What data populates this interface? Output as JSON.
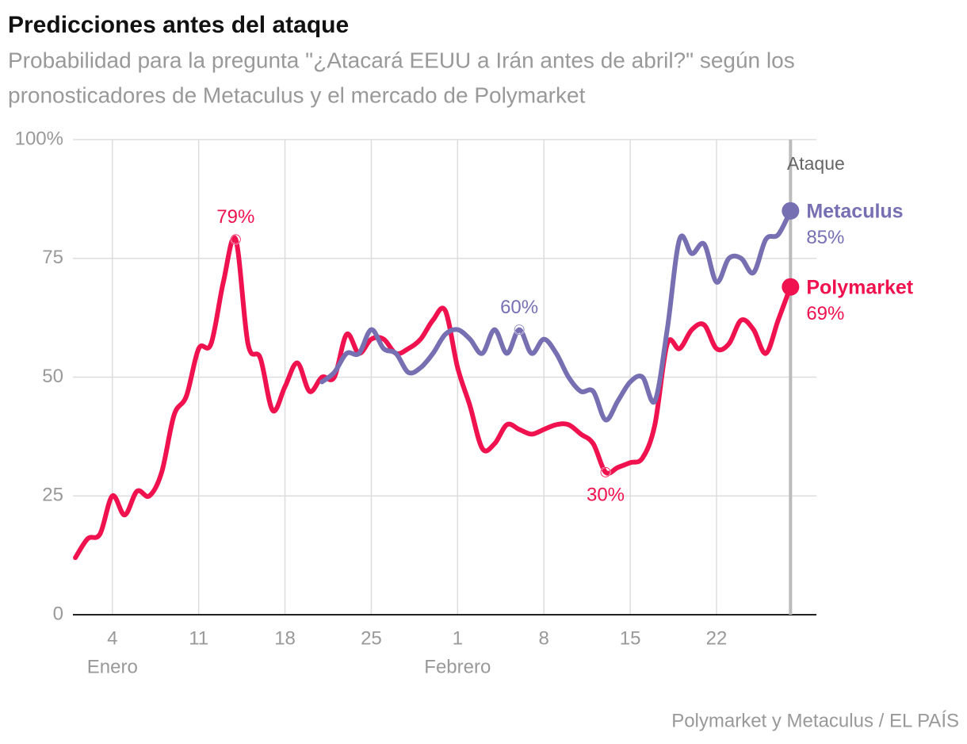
{
  "chart_data": {
    "type": "line",
    "title": "Predicciones antes del ataque",
    "subtitle": [
      "Probabilidad para la pregunta \"¿Atacará EEUU a Irán antes de abril?\" según los",
      "pronosticadores de Metaculus y el mercado de Polymarket"
    ],
    "source": "Polymarket y Metaculus / EL PAÍS",
    "xlim": [
      0.8,
      61.1
    ],
    "xticks": [
      4,
      11,
      18,
      25,
      {
        "value": 32,
        "label": "1"
      },
      {
        "value": 39,
        "label": "8"
      },
      {
        "value": 46,
        "label": "15"
      },
      {
        "value": 53,
        "label": "22"
      }
    ],
    "x_sublabels": [
      {
        "value": 4,
        "label": "Enero"
      },
      {
        "value": 32,
        "label": "Febrero"
      }
    ],
    "ylim": [
      0,
      100
    ],
    "yticks": [
      {
        "value": 0,
        "label": "0"
      },
      25,
      50,
      75,
      {
        "value": 100,
        "label": "100%"
      }
    ],
    "grid": true,
    "series": [
      {
        "name": "Polymarket",
        "color": "#f0114f",
        "x": [
          1,
          2,
          3,
          4,
          5,
          6,
          7,
          8,
          9,
          10,
          11,
          12,
          13,
          14,
          15,
          16,
          17,
          18,
          19,
          20,
          21,
          22,
          23,
          24,
          25,
          26,
          27,
          28,
          29,
          30,
          31,
          32,
          33,
          34,
          35,
          36,
          37,
          38,
          39,
          40,
          41,
          42,
          43,
          44,
          45,
          46,
          47,
          48,
          49,
          50,
          51,
          52,
          53,
          54,
          55,
          56,
          57,
          58,
          59
        ],
        "values": [
          12,
          16,
          17,
          25,
          21,
          26,
          25,
          30,
          42,
          46,
          56,
          57,
          70,
          79,
          57,
          54,
          43,
          48,
          53,
          47,
          50,
          50,
          59,
          55,
          58,
          58,
          55,
          56,
          58,
          62,
          64,
          52,
          44,
          35,
          36,
          40,
          39,
          38,
          39,
          40,
          40,
          38,
          36,
          30,
          31,
          32,
          33,
          40,
          57,
          56,
          60,
          61,
          56,
          57,
          62,
          60,
          55,
          62,
          69
        ]
      },
      {
        "name": "Metaculus",
        "color": "#7670b3",
        "x": [
          21,
          22,
          23,
          24,
          25,
          26,
          27,
          28,
          29,
          30,
          31,
          32,
          33,
          34,
          35,
          36,
          37,
          38,
          39,
          40,
          41,
          42,
          43,
          44,
          45,
          46,
          47,
          48,
          49,
          50,
          51,
          52,
          53,
          54,
          55,
          56,
          57,
          58,
          59
        ],
        "values": [
          49,
          51,
          55,
          55,
          60,
          56,
          55,
          51,
          52,
          55,
          59,
          60,
          58,
          55,
          60,
          55,
          60,
          55,
          58,
          55,
          50,
          47,
          47,
          41,
          45,
          49,
          50,
          45,
          60,
          79,
          76,
          78,
          70,
          75,
          75,
          72,
          79,
          80,
          85
        ]
      }
    ],
    "annotations": [
      {
        "label": "79%",
        "series": "Polymarket",
        "x": 14,
        "value": 79,
        "position": "above"
      },
      {
        "label": "60%",
        "series": "Metaculus",
        "x": 37,
        "value": 60,
        "position": "above"
      },
      {
        "label": "30%",
        "series": "Polymarket",
        "x": 44,
        "value": 30,
        "position": "below"
      }
    ],
    "end_labels": [
      {
        "series": "Metaculus",
        "x": 59,
        "value": 85,
        "label": "85%"
      },
      {
        "series": "Polymarket",
        "x": 59,
        "value": 69,
        "label": "69%"
      }
    ],
    "event": {
      "label": "Ataque",
      "x": 59
    }
  }
}
